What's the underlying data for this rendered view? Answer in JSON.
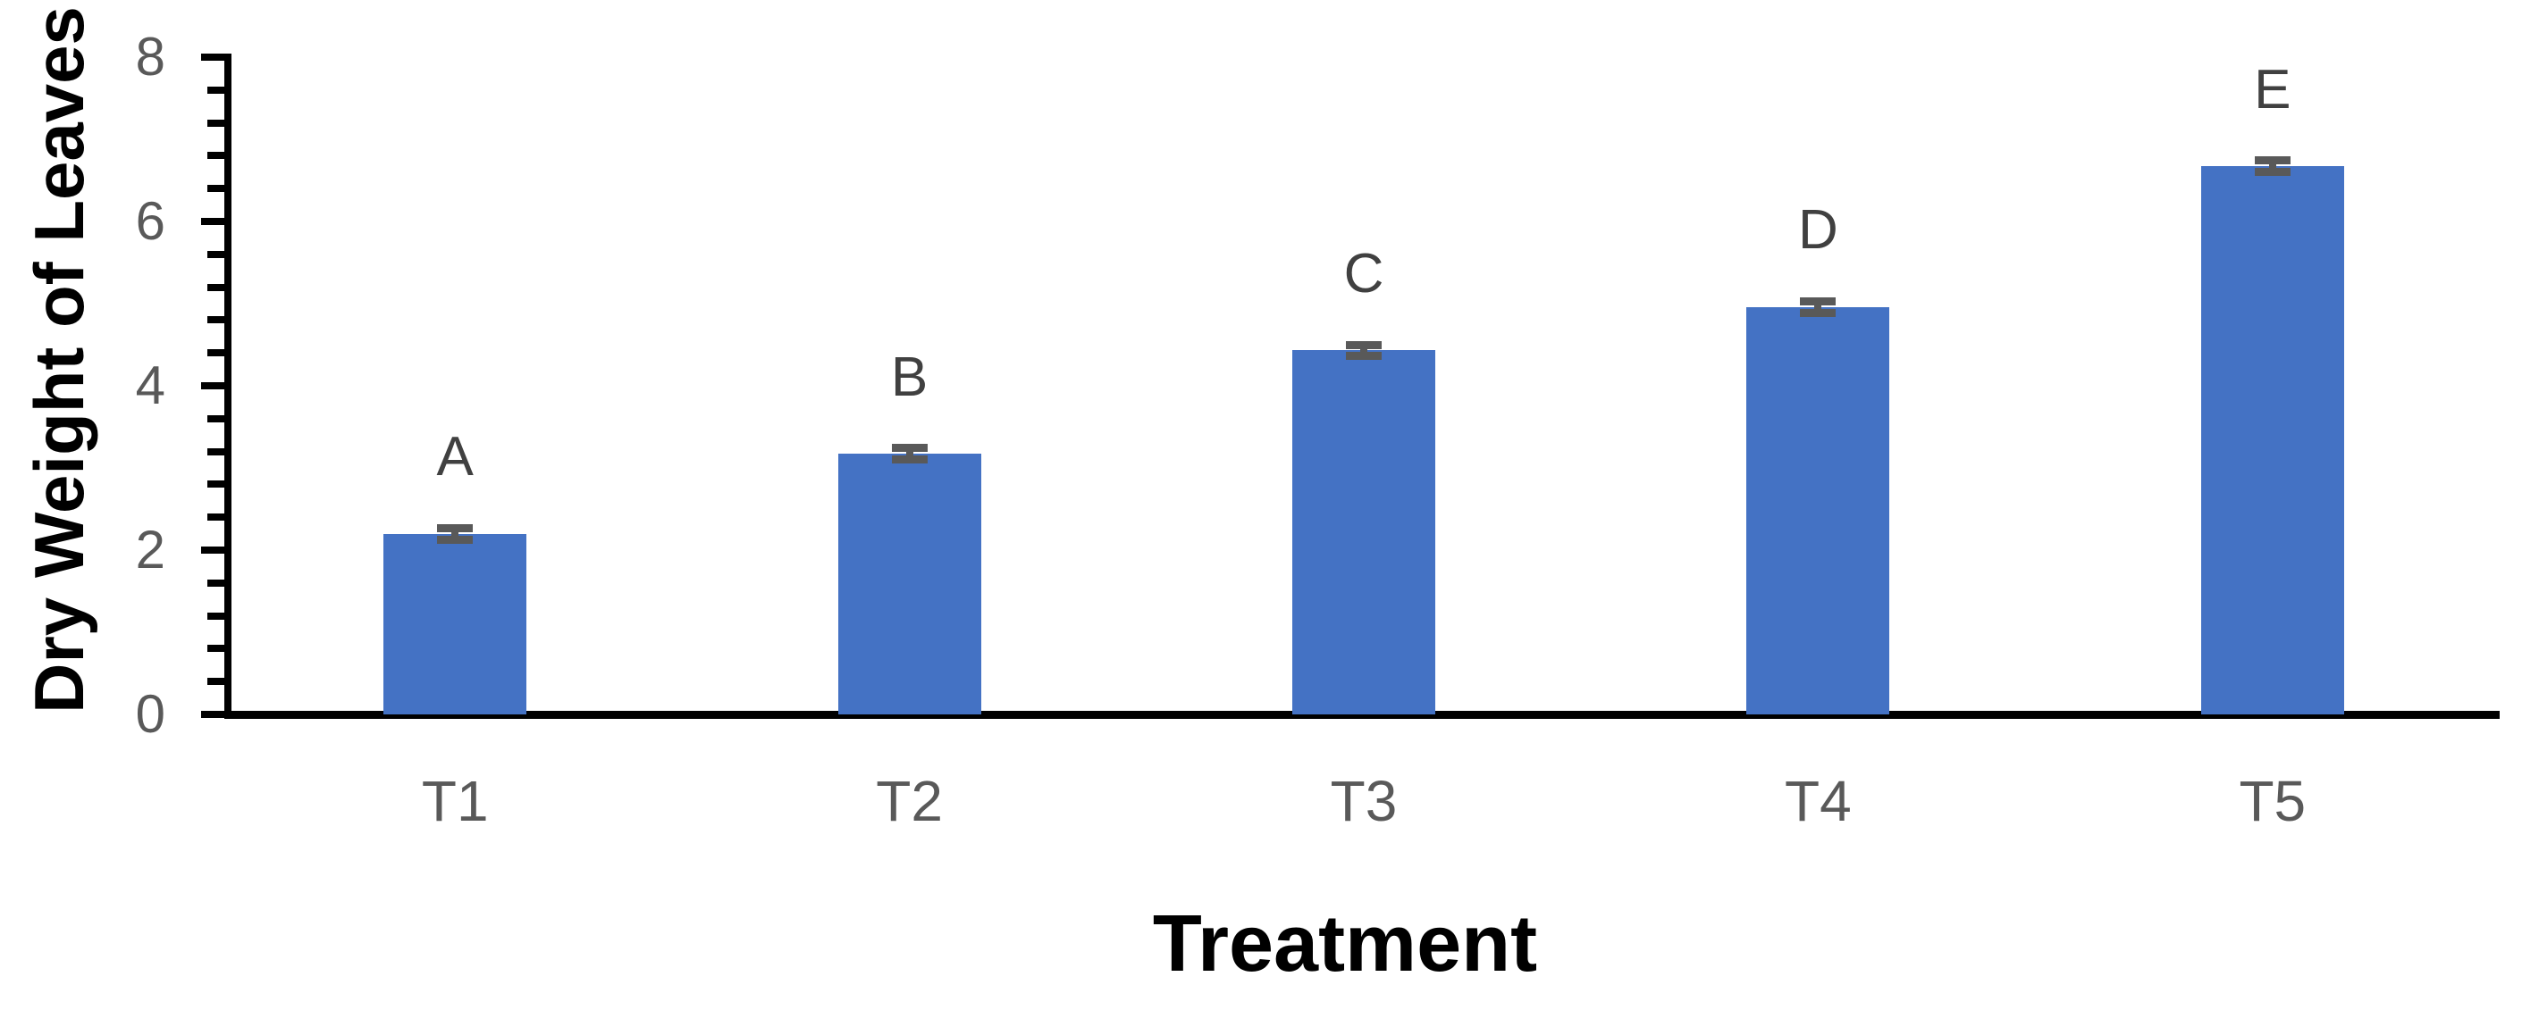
{
  "chart_data": {
    "type": "bar",
    "title": "",
    "xlabel": "Treatment",
    "ylabel": "Dry Weight of Leaves",
    "categories": [
      "T1",
      "T2",
      "T3",
      "T4",
      "T5"
    ],
    "series": [
      {
        "name": "Dry Weight of Leaves",
        "values": [
          2.2,
          3.17,
          4.43,
          4.96,
          6.67
        ],
        "error_bars": [
          0.07,
          0.07,
          0.07,
          0.07,
          0.07
        ],
        "point_labels": [
          "A",
          "B",
          "C",
          "D",
          "E"
        ]
      }
    ],
    "ylim": [
      0,
      8
    ],
    "y_major_ticks": [
      "0",
      "2",
      "4",
      "6",
      "8"
    ],
    "y_major_step": 2,
    "y_minor_step": 0.4,
    "grid": false,
    "legend_visible": false,
    "colors": {
      "bar": "#4472C4",
      "error_bar": "#595959",
      "axis_line": "#000000",
      "tick_label": "#595959",
      "point_label": "#404040",
      "axis_title": "#000000",
      "background": "#FFFFFF"
    }
  }
}
